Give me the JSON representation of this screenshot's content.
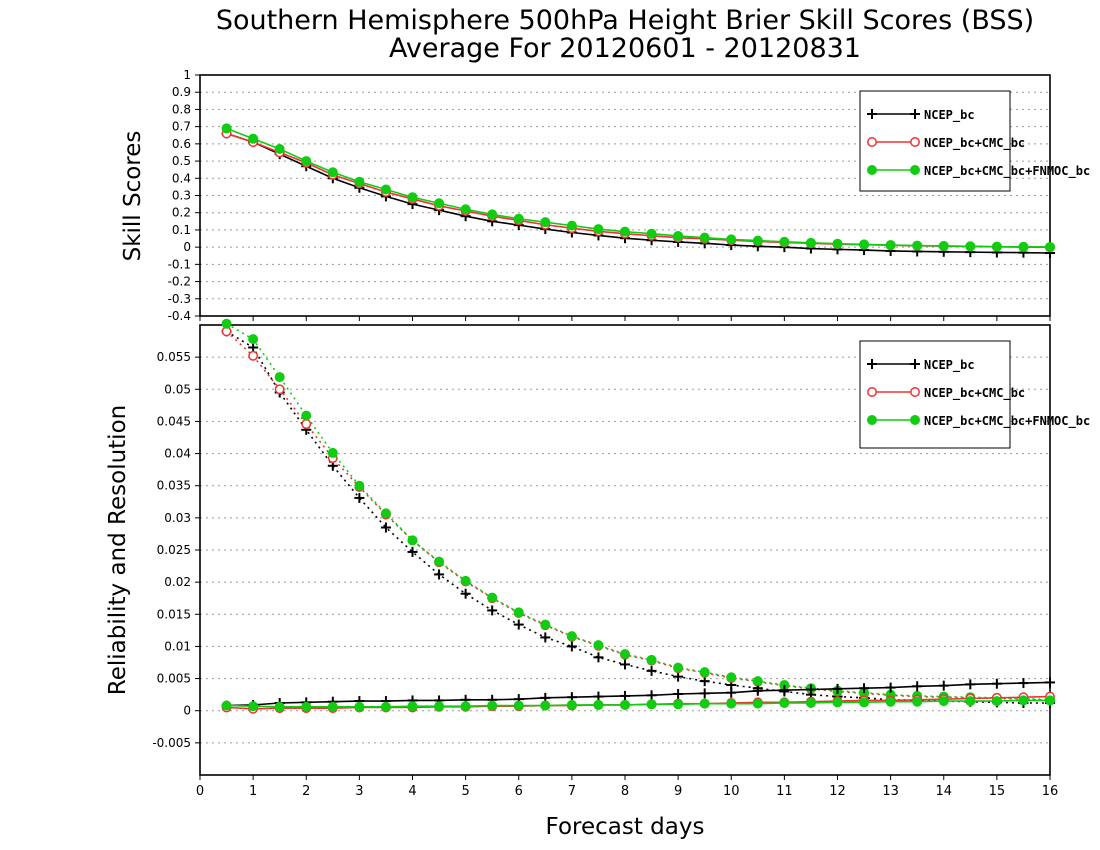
{
  "title": {
    "line1": "Southern Hemisphere 500hPa Height Brier Skill Scores (BSS)",
    "line2": "Average For 20120601 - 20120831"
  },
  "xlabel": "Forecast days",
  "colors": {
    "black": "#000000",
    "red": "#ee3333",
    "green": "#11cc11",
    "grid": "#999999"
  },
  "legend": {
    "entries": [
      "NCEP_bc",
      "NCEP_bc+CMC_bc",
      "NCEP_bc+CMC_bc+FNMOC_bc"
    ]
  },
  "chart_data": [
    {
      "type": "line",
      "title": "",
      "xlabel": "Forecast days",
      "ylabel": "Skill Scores",
      "xlim": [
        0,
        16
      ],
      "ylim": [
        -0.4,
        1
      ],
      "xticks": [
        "0",
        "1",
        "2",
        "3",
        "4",
        "5",
        "6",
        "7",
        "8",
        "9",
        "10",
        "11",
        "12",
        "13",
        "14",
        "15",
        "16"
      ],
      "yticks": [
        "-0.4",
        "-0.3",
        "-0.2",
        "-0.1",
        "0",
        "0.1",
        "0.2",
        "0.3",
        "0.4",
        "0.5",
        "0.6",
        "0.7",
        "0.8",
        "0.9",
        "1"
      ],
      "grid": true,
      "legend_position": "top-right",
      "x": [
        0.5,
        1,
        1.5,
        2,
        2.5,
        3,
        3.5,
        4,
        4.5,
        5,
        5.5,
        6,
        6.5,
        7,
        7.5,
        8,
        8.5,
        9,
        9.5,
        10,
        10.5,
        11,
        11.5,
        12,
        12.5,
        13,
        13.5,
        14,
        14.5,
        15,
        15.5,
        16
      ],
      "series": [
        {
          "name": "NCEP_bc",
          "marker": "plus",
          "line": "solid",
          "color": "black",
          "values": [
            0.66,
            0.61,
            0.54,
            0.47,
            0.4,
            0.345,
            0.295,
            0.25,
            0.215,
            0.18,
            0.15,
            0.128,
            0.105,
            0.085,
            0.068,
            0.052,
            0.04,
            0.03,
            0.022,
            0.012,
            0.005,
            0.0,
            -0.008,
            -0.013,
            -0.017,
            -0.022,
            -0.025,
            -0.027,
            -0.029,
            -0.031,
            -0.032,
            -0.034
          ]
        },
        {
          "name": "NCEP_bc+CMC_bc",
          "marker": "open-circle",
          "line": "solid",
          "color": "red",
          "values": [
            0.66,
            0.61,
            0.55,
            0.49,
            0.42,
            0.37,
            0.32,
            0.28,
            0.24,
            0.21,
            0.18,
            0.155,
            0.13,
            0.11,
            0.092,
            0.078,
            0.066,
            0.055,
            0.048,
            0.04,
            0.033,
            0.027,
            0.022,
            0.017,
            0.014,
            0.011,
            0.008,
            0.006,
            0.004,
            0.002,
            0.0,
            -0.001
          ]
        },
        {
          "name": "NCEP_bc+CMC_bc+FNMOC_bc",
          "marker": "filled-circle",
          "line": "solid",
          "color": "green",
          "values": [
            0.69,
            0.63,
            0.57,
            0.5,
            0.435,
            0.38,
            0.335,
            0.29,
            0.255,
            0.22,
            0.19,
            0.165,
            0.145,
            0.125,
            0.105,
            0.09,
            0.078,
            0.065,
            0.055,
            0.045,
            0.038,
            0.031,
            0.025,
            0.02,
            0.016,
            0.012,
            0.009,
            0.007,
            0.005,
            0.003,
            0.002,
            0.001
          ]
        }
      ]
    },
    {
      "type": "line",
      "title": "",
      "xlabel": "Forecast days",
      "ylabel": "Reliability and Resolution",
      "xlim": [
        0,
        16
      ],
      "ylim": [
        -0.01,
        0.06
      ],
      "xticks": [
        "0",
        "1",
        "2",
        "3",
        "4",
        "5",
        "6",
        "7",
        "8",
        "9",
        "10",
        "11",
        "12",
        "13",
        "14",
        "15",
        "16"
      ],
      "yticks": [
        "-0.005",
        "0",
        "0.005",
        "0.01",
        "0.015",
        "0.02",
        "0.025",
        "0.03",
        "0.035",
        "0.04",
        "0.045",
        "0.05",
        "0.055"
      ],
      "grid": true,
      "legend_position": "top-right",
      "x": [
        0.5,
        1,
        1.5,
        2,
        2.5,
        3,
        3.5,
        4,
        4.5,
        5,
        5.5,
        6,
        6.5,
        7,
        7.5,
        8,
        8.5,
        9,
        9.5,
        10,
        10.5,
        11,
        11.5,
        12,
        12.5,
        13,
        13.5,
        14,
        14.5,
        15,
        15.5,
        16
      ],
      "series": [
        {
          "name": "NCEP_bc",
          "group": "resolution",
          "marker": "plus",
          "line": "dotted",
          "color": "black",
          "values": [
            0.059,
            0.0565,
            0.0495,
            0.0437,
            0.0381,
            0.0331,
            0.0285,
            0.0247,
            0.0212,
            0.0182,
            0.0156,
            0.0134,
            0.0114,
            0.01,
            0.0083,
            0.0072,
            0.0062,
            0.0053,
            0.0046,
            0.004,
            0.0035,
            0.003,
            0.0025,
            0.0022,
            0.002,
            0.0017,
            0.0016,
            0.0015,
            0.0014,
            0.0013,
            0.0012,
            0.0012
          ]
        },
        {
          "name": "NCEP_bc+CMC_bc",
          "group": "resolution",
          "marker": "open-circle",
          "line": "dotted",
          "color": "red",
          "values": [
            0.059,
            0.0552,
            0.05,
            0.0446,
            0.0393,
            0.0348,
            0.0305,
            0.0265,
            0.0231,
            0.0201,
            0.0175,
            0.0152,
            0.0133,
            0.0115,
            0.0101,
            0.0087,
            0.0078,
            0.0066,
            0.0059,
            0.0051,
            0.0045,
            0.0039,
            0.0034,
            0.003,
            0.0027,
            0.0024,
            0.0022,
            0.0021,
            0.002,
            0.0019,
            0.0018,
            0.0016
          ]
        },
        {
          "name": "NCEP_bc+CMC_bc+FNMOC_bc",
          "group": "resolution",
          "marker": "filled-circle",
          "line": "dotted",
          "color": "green",
          "values": [
            0.0602,
            0.0578,
            0.0519,
            0.0459,
            0.0401,
            0.035,
            0.0307,
            0.0265,
            0.0232,
            0.0202,
            0.0176,
            0.0153,
            0.0134,
            0.0116,
            0.0102,
            0.0088,
            0.0079,
            0.0067,
            0.006,
            0.0052,
            0.0046,
            0.004,
            0.0035,
            0.0031,
            0.0028,
            0.0025,
            0.0023,
            0.0022,
            0.0021,
            0.002,
            0.0019,
            0.0017
          ]
        },
        {
          "name": "NCEP_bc",
          "group": "reliability",
          "marker": "plus",
          "line": "solid",
          "color": "black",
          "values": [
            0.0008,
            0.0009,
            0.0012,
            0.0013,
            0.0014,
            0.0015,
            0.0015,
            0.0016,
            0.0016,
            0.0017,
            0.0017,
            0.0018,
            0.002,
            0.0021,
            0.0022,
            0.0023,
            0.0024,
            0.0026,
            0.0027,
            0.0028,
            0.0031,
            0.0032,
            0.0033,
            0.0034,
            0.0035,
            0.0036,
            0.0038,
            0.0039,
            0.0041,
            0.0042,
            0.0043,
            0.0044
          ]
        },
        {
          "name": "NCEP_bc+CMC_bc",
          "group": "reliability",
          "marker": "open-circle",
          "line": "solid",
          "color": "red",
          "values": [
            0.0005,
            0.0003,
            0.0004,
            0.0004,
            0.0004,
            0.0005,
            0.0005,
            0.0005,
            0.0006,
            0.0006,
            0.0007,
            0.0007,
            0.0008,
            0.0008,
            0.0009,
            0.0009,
            0.001,
            0.0011,
            0.0011,
            0.0012,
            0.0013,
            0.0013,
            0.0014,
            0.0015,
            0.0016,
            0.0016,
            0.0017,
            0.0018,
            0.0019,
            0.002,
            0.0021,
            0.0022
          ]
        },
        {
          "name": "NCEP_bc+CMC_bc+FNMOC_bc",
          "group": "reliability",
          "marker": "filled-circle",
          "line": "solid",
          "color": "green",
          "values": [
            0.0008,
            0.0007,
            0.0006,
            0.0006,
            0.0006,
            0.0006,
            0.0006,
            0.0007,
            0.0007,
            0.0007,
            0.0008,
            0.0008,
            0.0008,
            0.0009,
            0.0009,
            0.0009,
            0.001,
            0.001,
            0.0011,
            0.0011,
            0.0011,
            0.0012,
            0.0012,
            0.0013,
            0.0013,
            0.0014,
            0.0014,
            0.0015,
            0.0015,
            0.0015,
            0.0016,
            0.0016
          ]
        }
      ]
    }
  ]
}
